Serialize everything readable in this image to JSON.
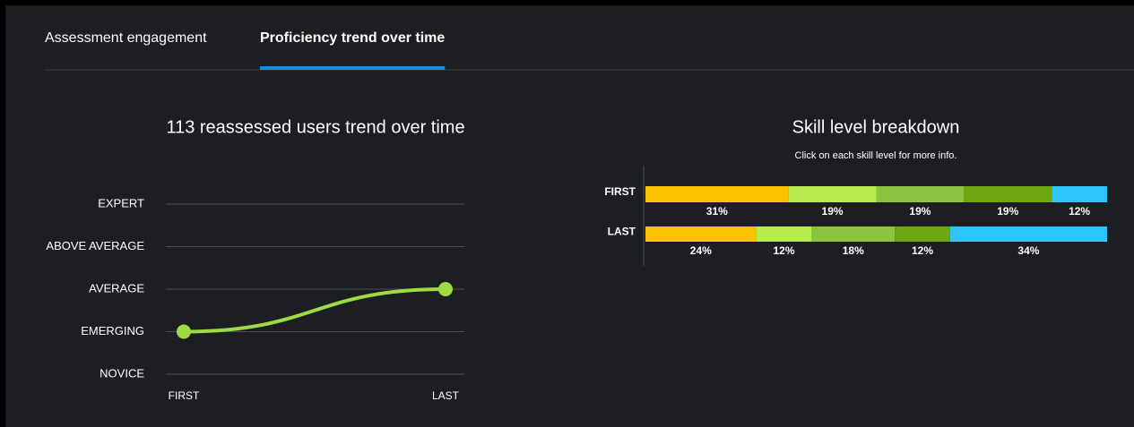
{
  "tabs": {
    "items": [
      "Assessment engagement",
      "Proficiency trend over time"
    ],
    "active": 1
  },
  "chart_data": [
    {
      "type": "line",
      "title": "113 reassessed users trend over time",
      "categories": [
        "FIRST",
        "LAST"
      ],
      "values": [
        1,
        2
      ],
      "color": "#9ddc43",
      "ylim": [
        0,
        4
      ],
      "yticks": [
        {
          "value": 0,
          "label": "NOVICE"
        },
        {
          "value": 1,
          "label": "EMERGING"
        },
        {
          "value": 2,
          "label": "AVERAGE"
        },
        {
          "value": 3,
          "label": "ABOVE AVERAGE"
        },
        {
          "value": 4,
          "label": "EXPERT"
        }
      ],
      "ytick_colors": [
        "#f5b800",
        "#b5e14a",
        "#9bcf3f",
        "#6e9f1d",
        "#2fb9f0"
      ],
      "grid": true
    },
    {
      "type": "stacked_barh",
      "title": "Skill level breakdown",
      "subtitle": "Click on each skill level for more info.",
      "categories": [
        "FIRST",
        "LAST"
      ],
      "xlim": [
        0,
        100
      ],
      "series": [
        {
          "color": "#fcc200",
          "values": [
            31,
            24
          ],
          "value_labels": [
            "31%",
            "24%"
          ]
        },
        {
          "color": "#b6ec4f",
          "values": [
            19,
            12
          ],
          "value_labels": [
            "19%",
            "12%"
          ]
        },
        {
          "color": "#8bc43f",
          "values": [
            19,
            18
          ],
          "value_labels": [
            "19%",
            "18%"
          ]
        },
        {
          "color": "#6ea70f",
          "values": [
            19,
            12
          ],
          "value_labels": [
            "19%",
            "12%"
          ]
        },
        {
          "color": "#2ec4f8",
          "values": [
            12,
            34
          ],
          "value_labels": [
            "12%",
            "34%"
          ]
        }
      ]
    }
  ]
}
